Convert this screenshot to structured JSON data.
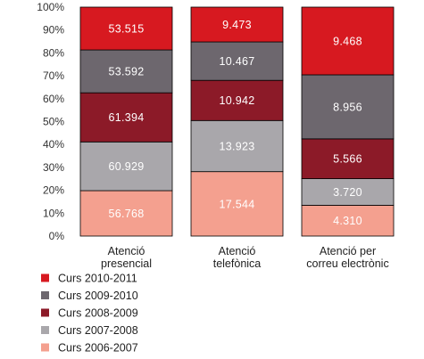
{
  "chart_data": {
    "type": "bar",
    "stacked": true,
    "normalized": true,
    "categories": [
      [
        "Atenció",
        "presencial"
      ],
      [
        "Atenció",
        "telefònica"
      ],
      [
        "Atenció per",
        "correu electrònic"
      ]
    ],
    "series": [
      {
        "name": "Curs 2006-2007",
        "color": "#f4a08f",
        "values": [
          56768,
          17544,
          4310
        ],
        "labels": [
          "56.768",
          "17.544",
          "4.310"
        ]
      },
      {
        "name": "Curs 2007-2008",
        "color": "#a9a7ab",
        "values": [
          60929,
          13923,
          3720
        ],
        "labels": [
          "60.929",
          "13.923",
          "3.720"
        ]
      },
      {
        "name": "Curs 2008-2009",
        "color": "#8c1a28",
        "values": [
          61394,
          10942,
          5566
        ],
        "labels": [
          "61.394",
          "10.942",
          "5.566"
        ]
      },
      {
        "name": "Curs 2009-2010",
        "color": "#6d676e",
        "values": [
          53592,
          10467,
          8956
        ],
        "labels": [
          "53.592",
          "10.467",
          "8.956"
        ]
      },
      {
        "name": "Curs 2010-2011",
        "color": "#d71920",
        "values": [
          53515,
          9473,
          9468
        ],
        "labels": [
          "53.515",
          "9.473",
          "9.468"
        ]
      }
    ],
    "legend_order": [
      "Curs 2010-2011",
      "Curs 2009-2010",
      "Curs 2008-2009",
      "Curs 2007-2008",
      "Curs 2006-2007"
    ],
    "y_ticks": [
      "0%",
      "10%",
      "20%",
      "30%",
      "40%",
      "50%",
      "60%",
      "70%",
      "80%",
      "90%",
      "100%"
    ],
    "ylim": [
      0,
      100
    ],
    "title": "",
    "xlabel": "",
    "ylabel": "",
    "grid": false,
    "legend_position": "bottom-left"
  }
}
